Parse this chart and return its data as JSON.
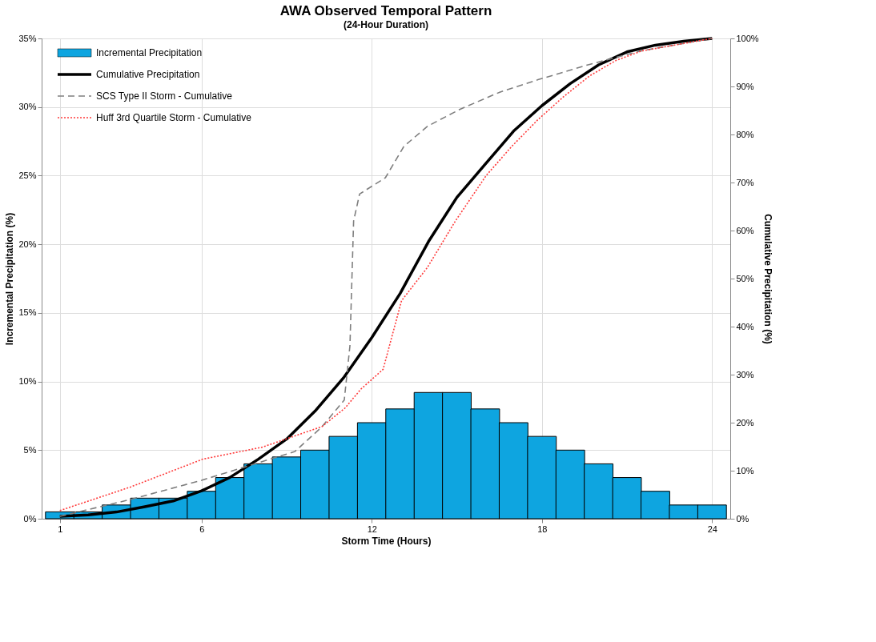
{
  "chart_data": {
    "type": "bar",
    "title": "AWA Observed Temporal Pattern",
    "subtitle": "(24-Hour Duration)",
    "xlabel": "Storm Time (Hours)",
    "ylabel": "Incremental Precipitation (%)",
    "y2label": "Cumulative Precipitation (%)",
    "xlim": [
      0.5,
      24.5
    ],
    "xticks": [
      1,
      6,
      12,
      18,
      24
    ],
    "ylim": [
      0,
      35
    ],
    "yticks": [
      {
        "value": 0,
        "label": "0%"
      },
      {
        "value": 5,
        "label": "5%"
      },
      {
        "value": 10,
        "label": "10%"
      },
      {
        "value": 15,
        "label": "15%"
      },
      {
        "value": 20,
        "label": "20%"
      },
      {
        "value": 25,
        "label": "25%"
      },
      {
        "value": 30,
        "label": "30%"
      },
      {
        "value": 35,
        "label": "35%"
      }
    ],
    "y2lim": [
      0,
      100
    ],
    "y2ticks": [
      {
        "value": 0,
        "label": "0%"
      },
      {
        "value": 10,
        "label": "10%"
      },
      {
        "value": 20,
        "label": "20%"
      },
      {
        "value": 30,
        "label": "30%"
      },
      {
        "value": 40,
        "label": "40%"
      },
      {
        "value": 50,
        "label": "50%"
      },
      {
        "value": 60,
        "label": "60%"
      },
      {
        "value": 70,
        "label": "70%"
      },
      {
        "value": 80,
        "label": "80%"
      },
      {
        "value": 90,
        "label": "90%"
      },
      {
        "value": 100,
        "label": "100%"
      }
    ],
    "grid": true,
    "legend": "top left",
    "series": [
      {
        "name": "Incremental Precipitation",
        "color": "#0ea5e0",
        "x": [
          1,
          2,
          3,
          4,
          5,
          6,
          7,
          8,
          9,
          10,
          11,
          12,
          13,
          14,
          15,
          16,
          17,
          18,
          19,
          20,
          21,
          22,
          23,
          24
        ],
        "values": [
          0.5,
          0.5,
          1,
          1.5,
          1.5,
          2,
          3,
          4,
          4.5,
          5,
          6,
          7,
          8,
          9.2,
          9.2,
          8,
          7,
          6,
          5,
          4,
          3,
          2,
          1,
          1
        ]
      },
      {
        "name": "Cumulative Precipitation",
        "type": "line",
        "axis": "y2",
        "color": "#000000",
        "line_style": "solid",
        "x": [
          1,
          2,
          3,
          4,
          5,
          6,
          7,
          8,
          9,
          10,
          11,
          12,
          13,
          14,
          15,
          16,
          17,
          18,
          19,
          20,
          21,
          22,
          23,
          24
        ],
        "values": [
          0.5,
          0.8,
          1.4,
          2.5,
          3.7,
          5.8,
          8.6,
          12.4,
          16.6,
          22.4,
          29.3,
          37.7,
          46.9,
          57.7,
          66.9,
          73.8,
          80.7,
          86,
          90.6,
          94.5,
          97.2,
          98.6,
          99.4,
          100
        ]
      },
      {
        "name": "SCS Type II Storm - Cumulative",
        "type": "line",
        "axis": "y2",
        "color": "#7f7f7f",
        "line_style": "dashed",
        "x": [
          1,
          3.49,
          6,
          9.29,
          10.22,
          11.03,
          11.23,
          11.36,
          11.57,
          12.48,
          13.13,
          13.96,
          15.13,
          16.51,
          17.86,
          19.68,
          21.49,
          24
        ],
        "values": [
          0.5,
          4,
          8,
          14,
          19,
          24.7,
          36,
          62,
          67.6,
          71,
          77.5,
          81.7,
          85.3,
          88.8,
          91.4,
          94.6,
          97.4,
          100
        ]
      },
      {
        "name": "Huff 3rd Quartile Storm - Cumulative",
        "type": "line",
        "axis": "y2",
        "color": "#ff3b3b",
        "line_style": "dotted",
        "x": [
          1,
          3.49,
          6.04,
          8.14,
          10.25,
          11.05,
          11.62,
          12.4,
          13.05,
          13.96,
          14.95,
          16.04,
          16.95,
          17.86,
          18.77,
          19.68,
          20.61,
          21.52,
          24
        ],
        "values": [
          1.7,
          6.6,
          12.4,
          14.9,
          19.2,
          23,
          27,
          31.1,
          45.4,
          52.3,
          62,
          71.5,
          77.6,
          83.1,
          87.9,
          92.2,
          95.4,
          97.4,
          100
        ]
      }
    ]
  }
}
